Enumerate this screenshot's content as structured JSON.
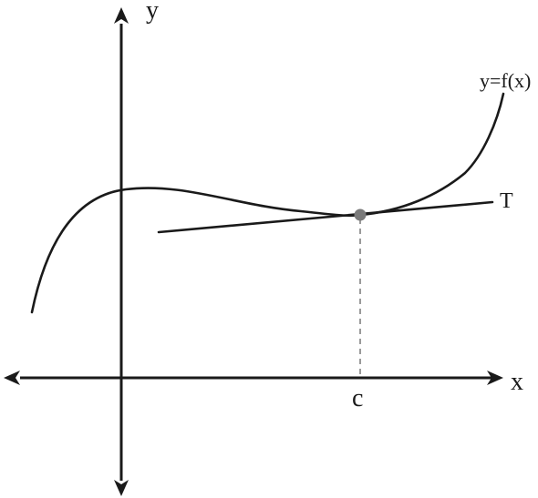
{
  "figure": {
    "y_axis_label": "y",
    "x_axis_label": "x",
    "curve_label": "y=f(x)",
    "tangent_label": "T",
    "point_label": "c"
  },
  "colors": {
    "stroke": "#1a1a1a",
    "point": "#7a7a7a",
    "dashed": "#9a9a9a",
    "background": "#ffffff"
  }
}
